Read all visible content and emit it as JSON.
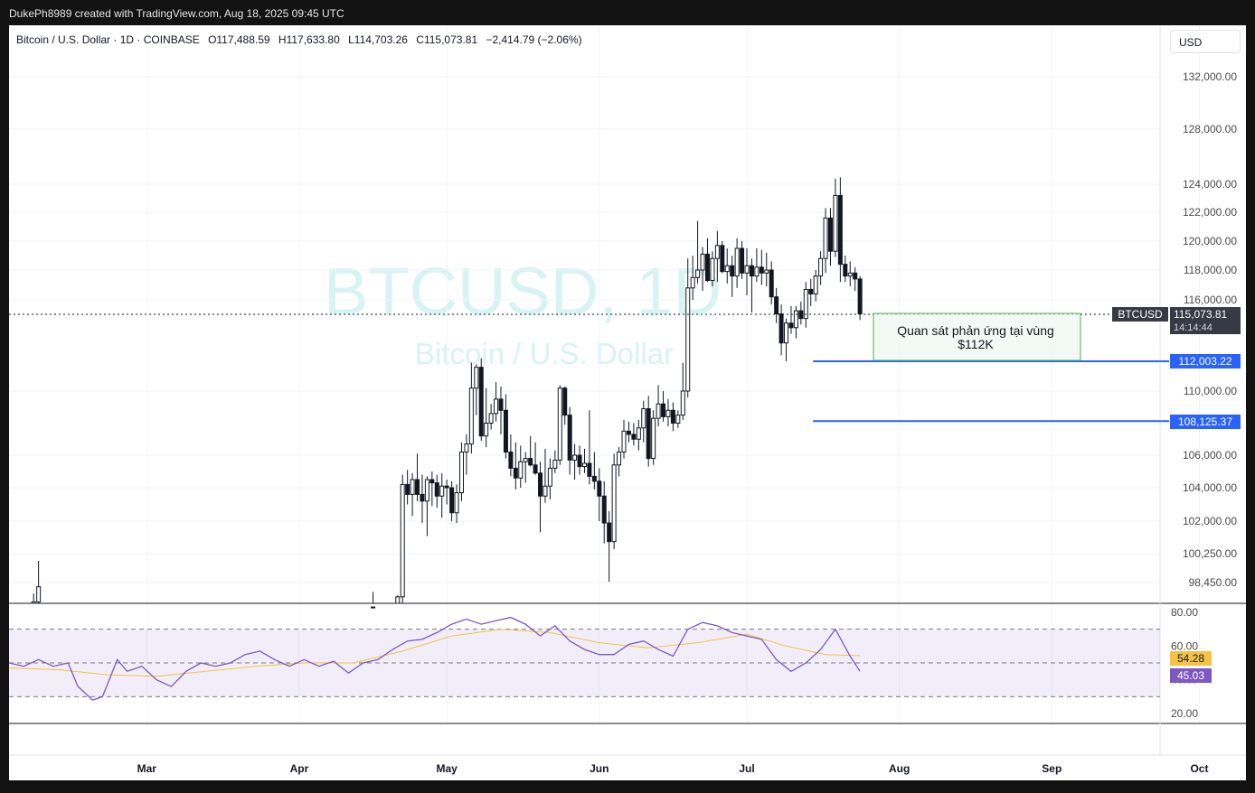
{
  "header": {
    "credit": "DukePh8989 created with TradingView.com, Aug 18, 2025 09:45 UTC"
  },
  "legend": {
    "title": "Bitcoin / U.S. Dollar · 1D · COINBASE",
    "open": "O117,488.59",
    "high": "H117,633.80",
    "low": "L114,703.26",
    "close": "C115,073.81",
    "change": "−2,414.79 (−2.06%)"
  },
  "currency_button": "USD",
  "watermark": {
    "symbol": "BTCUSD, 1D",
    "name": "Bitcoin / U.S. Dollar"
  },
  "colors": {
    "up": "#ffffff",
    "down": "#131722",
    "level": "#2962ff",
    "rsi": "#7e57c2",
    "rsi_ma": "#f5c342",
    "annotation_border": "#4caf50"
  },
  "annotation": {
    "line1": "Quan sát phản ứng tại vùng",
    "line2": "$112K"
  },
  "labels": {
    "last_symbol": "BTCUSD",
    "last_price": "115,073.81",
    "countdown": "14:14:44",
    "level_1": "112,003.22",
    "level_2": "108,125.37",
    "rsi_value": "45.03",
    "rsi_ma_value": "54.28"
  },
  "chart_data": [
    {
      "type": "candlestick",
      "symbol": "BTCUSD",
      "interval": "1D",
      "y_ticks": [
        "132,000.00",
        "128,000.00",
        "124,000.00",
        "122,000.00",
        "120,000.00",
        "118,000.00",
        "116,000.00",
        "110,000.00",
        "106,000.00",
        "104,000.00",
        "102,000.00",
        "100,250.00",
        "98,450.00"
      ],
      "y_tick_values": [
        132000,
        128000,
        124000,
        122000,
        120000,
        118000,
        116000,
        110000,
        106000,
        104000,
        102000,
        100250,
        98450
      ],
      "x_ticks": [
        "Mar",
        "Apr",
        "May",
        "Jun",
        "Jul",
        "Aug",
        "Sep",
        "Oct"
      ],
      "x_tick_days": [
        28,
        59,
        89,
        120,
        150,
        181,
        212,
        242
      ],
      "last_price": 115073.81,
      "levels": [
        112003.22,
        108125.37
      ],
      "candles": [
        [
          0,
          96200,
          97200,
          96000,
          96800
        ],
        [
          1,
          96500,
          97000,
          95800,
          96200
        ],
        [
          5,
          96300,
          97800,
          95900,
          97300
        ],
        [
          6,
          97300,
          99800,
          96800,
          98200
        ],
        [
          74,
          96400,
          97900,
          96000,
          97000
        ],
        [
          79,
          96000,
          97700,
          95800,
          97600
        ],
        [
          80,
          97600,
          104800,
          97200,
          104200
        ],
        [
          81,
          104200,
          105100,
          103000,
          103600
        ],
        [
          82,
          103600,
          104900,
          102300,
          104500
        ],
        [
          83,
          104500,
          106100,
          103200,
          103600
        ],
        [
          84,
          103600,
          104800,
          101900,
          103200
        ],
        [
          85,
          103200,
          104700,
          101200,
          104500
        ],
        [
          86,
          104500,
          105000,
          102900,
          104300
        ],
        [
          87,
          104300,
          104800,
          102800,
          103500
        ],
        [
          88,
          103500,
          104900,
          102200,
          104100
        ],
        [
          89,
          104100,
          104500,
          103000,
          104000
        ],
        [
          90,
          104000,
          104400,
          102000,
          102500
        ],
        [
          91,
          102500,
          104200,
          101900,
          103700
        ],
        [
          92,
          103700,
          106800,
          103200,
          106200
        ],
        [
          93,
          106200,
          107300,
          104800,
          106700
        ],
        [
          94,
          106700,
          111900,
          106100,
          110200
        ],
        [
          95,
          110200,
          111800,
          108500,
          111600
        ],
        [
          96,
          111600,
          112200,
          106900,
          107200
        ],
        [
          97,
          107200,
          110200,
          106500,
          108000
        ],
        [
          98,
          108000,
          109200,
          107600,
          108600
        ],
        [
          99,
          108600,
          110600,
          108100,
          109500
        ],
        [
          100,
          109500,
          110300,
          107300,
          108800
        ],
        [
          101,
          108800,
          109800,
          105800,
          106200
        ],
        [
          102,
          106200,
          107300,
          104700,
          105200
        ],
        [
          103,
          105200,
          106800,
          103900,
          104600
        ],
        [
          104,
          104600,
          106600,
          104000,
          105600
        ],
        [
          105,
          105600,
          106200,
          104300,
          105800
        ],
        [
          106,
          105800,
          107200,
          105300,
          105400
        ],
        [
          107,
          105400,
          106800,
          104800,
          104900
        ],
        [
          108,
          104900,
          105600,
          101400,
          103500
        ],
        [
          109,
          103500,
          106400,
          103100,
          104100
        ],
        [
          110,
          104100,
          105800,
          103300,
          105200
        ],
        [
          111,
          105200,
          106300,
          104900,
          105700
        ],
        [
          112,
          105700,
          110400,
          105400,
          110200
        ],
        [
          113,
          110200,
          110300,
          107900,
          108500
        ],
        [
          114,
          108500,
          109000,
          104800,
          105700
        ],
        [
          115,
          105700,
          106700,
          104500,
          106000
        ],
        [
          116,
          106000,
          106600,
          104800,
          105300
        ],
        [
          117,
          105300,
          106400,
          104900,
          105500
        ],
        [
          118,
          105500,
          108800,
          104200,
          104700
        ],
        [
          119,
          104700,
          106200,
          103900,
          104400
        ],
        [
          120,
          104400,
          105200,
          102000,
          103500
        ],
        [
          121,
          103500,
          104400,
          100800,
          101900
        ],
        [
          122,
          101900,
          102600,
          98500,
          100900
        ],
        [
          123,
          100900,
          106100,
          100500,
          105400
        ],
        [
          124,
          105400,
          106500,
          104700,
          106200
        ],
        [
          125,
          106200,
          108200,
          105800,
          107500
        ],
        [
          126,
          107500,
          108100,
          106800,
          107300
        ],
        [
          127,
          107300,
          108000,
          106600,
          107000
        ],
        [
          128,
          107000,
          108200,
          106300,
          107700
        ],
        [
          129,
          107700,
          109400,
          106800,
          108900
        ],
        [
          130,
          108900,
          109700,
          105300,
          105800
        ],
        [
          131,
          105800,
          108800,
          105400,
          108300
        ],
        [
          132,
          108300,
          110400,
          107800,
          109200
        ],
        [
          133,
          109200,
          110000,
          108100,
          108400
        ],
        [
          134,
          108400,
          109500,
          107800,
          108800
        ],
        [
          135,
          108800,
          109300,
          107500,
          108000
        ],
        [
          136,
          108000,
          108800,
          107700,
          108500
        ],
        [
          137,
          108500,
          111900,
          108200,
          110000
        ],
        [
          138,
          110000,
          118800,
          109600,
          116800
        ],
        [
          139,
          116800,
          119000,
          116000,
          117500
        ],
        [
          140,
          117500,
          121400,
          117100,
          118000
        ],
        [
          141,
          118000,
          119600,
          116600,
          119100
        ],
        [
          142,
          119100,
          120200,
          117200,
          117300
        ],
        [
          143,
          117300,
          119300,
          116900,
          118800
        ],
        [
          144,
          118800,
          120700,
          117200,
          119700
        ],
        [
          145,
          119700,
          120000,
          117800,
          117900
        ],
        [
          146,
          117900,
          119500,
          117100,
          118300
        ],
        [
          147,
          118300,
          119000,
          116200,
          117600
        ],
        [
          148,
          117600,
          120200,
          116800,
          119500
        ],
        [
          149,
          119500,
          120000,
          117400,
          117800
        ],
        [
          150,
          117800,
          119500,
          116300,
          118300
        ],
        [
          151,
          118300,
          118800,
          115200,
          117600
        ],
        [
          152,
          117600,
          119500,
          117200,
          118200
        ],
        [
          153,
          118200,
          119400,
          117000,
          117800
        ],
        [
          154,
          117800,
          119200,
          116900,
          118000
        ],
        [
          155,
          118000,
          118600,
          115700,
          116200
        ],
        [
          156,
          116200,
          116800,
          114500,
          115100
        ],
        [
          157,
          115100,
          115700,
          112400,
          113200
        ],
        [
          158,
          113200,
          114800,
          112000,
          114500
        ],
        [
          159,
          114500,
          115600,
          113800,
          114200
        ],
        [
          160,
          114200,
          115600,
          113500,
          115300
        ],
        [
          161,
          115300,
          115900,
          114400,
          114800
        ],
        [
          162,
          114800,
          117200,
          114200,
          116700
        ],
        [
          163,
          116700,
          117400,
          115600,
          116400
        ],
        [
          164,
          116400,
          118000,
          115900,
          117600
        ],
        [
          165,
          117600,
          119300,
          117000,
          118800
        ],
        [
          166,
          118800,
          122300,
          117800,
          121600
        ],
        [
          167,
          121600,
          122300,
          118300,
          119300
        ],
        [
          168,
          119300,
          124400,
          118900,
          123200
        ],
        [
          169,
          123200,
          124500,
          117200,
          118400
        ],
        [
          170,
          118400,
          119000,
          117200,
          117600
        ],
        [
          171,
          117600,
          118600,
          116900,
          117800
        ],
        [
          172,
          117800,
          118200,
          116600,
          117400
        ],
        [
          173,
          117400,
          117600,
          114700,
          115100
        ]
      ],
      "rsi_y_ticks": [
        "80.00",
        "60.00",
        "40.00",
        "20.00"
      ],
      "rsi_y_tick_values": [
        80,
        60,
        40,
        20
      ],
      "rsi_bands": [
        70,
        50,
        30
      ],
      "rsi_value": 45.03,
      "rsi_ma_value": 54.28,
      "rsi": [
        [
          0,
          50
        ],
        [
          3,
          48
        ],
        [
          6,
          52
        ],
        [
          9,
          48
        ],
        [
          12,
          50
        ],
        [
          14,
          36
        ],
        [
          17,
          28
        ],
        [
          19,
          30
        ],
        [
          22,
          52
        ],
        [
          24,
          45
        ],
        [
          27,
          48
        ],
        [
          30,
          40
        ],
        [
          33,
          36
        ],
        [
          36,
          45
        ],
        [
          39,
          50
        ],
        [
          42,
          48
        ],
        [
          45,
          50
        ],
        [
          48,
          55
        ],
        [
          51,
          57
        ],
        [
          54,
          52
        ],
        [
          57,
          48
        ],
        [
          60,
          52
        ],
        [
          63,
          48
        ],
        [
          66,
          51
        ],
        [
          69,
          44
        ],
        [
          72,
          50
        ],
        [
          75,
          52
        ],
        [
          78,
          58
        ],
        [
          81,
          63
        ],
        [
          84,
          64
        ],
        [
          87,
          68
        ],
        [
          90,
          73
        ],
        [
          93,
          76
        ],
        [
          96,
          73
        ],
        [
          99,
          75
        ],
        [
          102,
          77
        ],
        [
          105,
          73
        ],
        [
          108,
          66
        ],
        [
          111,
          72
        ],
        [
          114,
          63
        ],
        [
          117,
          58
        ],
        [
          120,
          55
        ],
        [
          123,
          55
        ],
        [
          126,
          61
        ],
        [
          129,
          63
        ],
        [
          132,
          58
        ],
        [
          135,
          54
        ],
        [
          138,
          70
        ],
        [
          141,
          74
        ],
        [
          144,
          72
        ],
        [
          147,
          68
        ],
        [
          150,
          66
        ],
        [
          153,
          64
        ],
        [
          156,
          52
        ],
        [
          159,
          45
        ],
        [
          162,
          50
        ],
        [
          165,
          58
        ],
        [
          168,
          70
        ],
        [
          171,
          54
        ],
        [
          173,
          45
        ]
      ],
      "rsi_ma": [
        [
          0,
          47
        ],
        [
          10,
          46
        ],
        [
          20,
          43
        ],
        [
          30,
          42
        ],
        [
          40,
          45
        ],
        [
          50,
          48
        ],
        [
          60,
          50
        ],
        [
          70,
          50
        ],
        [
          80,
          57
        ],
        [
          90,
          66
        ],
        [
          100,
          70
        ],
        [
          110,
          68
        ],
        [
          120,
          62
        ],
        [
          130,
          59
        ],
        [
          140,
          62
        ],
        [
          150,
          67
        ],
        [
          158,
          60
        ],
        [
          166,
          55
        ],
        [
          173,
          54.3
        ]
      ]
    }
  ]
}
